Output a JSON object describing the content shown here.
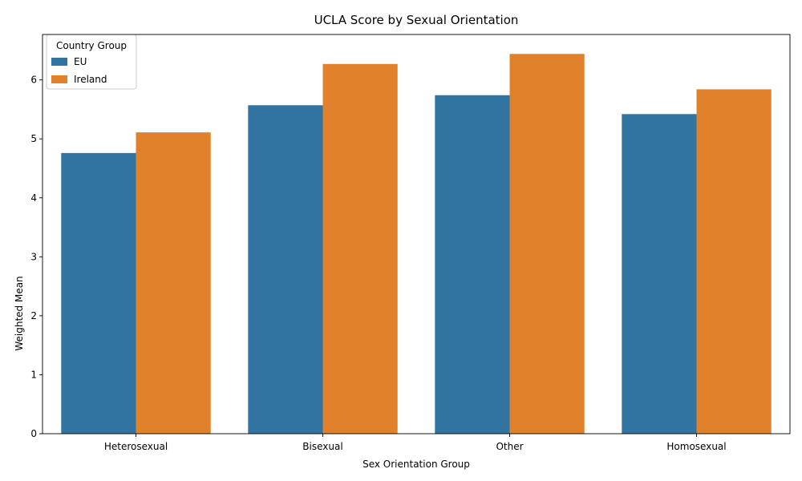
{
  "chart_data": {
    "type": "bar",
    "title": "UCLA Score by Sexual Orientation",
    "xlabel": "Sex Orientation Group",
    "ylabel": "Weighted Mean",
    "categories": [
      "Heterosexual",
      "Bisexual",
      "Other",
      "Homosexual"
    ],
    "series": [
      {
        "name": "EU",
        "color": "#3274a1",
        "values": [
          4.76,
          5.57,
          5.74,
          5.42
        ]
      },
      {
        "name": "Ireland",
        "color": "#e1812c",
        "values": [
          5.11,
          6.27,
          6.44,
          5.84
        ]
      }
    ],
    "ylim": [
      0,
      6.77
    ],
    "yticks": [
      0,
      1,
      2,
      3,
      4,
      5,
      6
    ],
    "grid": false,
    "legend": {
      "title": "Country Group",
      "placement": "top-left"
    }
  }
}
